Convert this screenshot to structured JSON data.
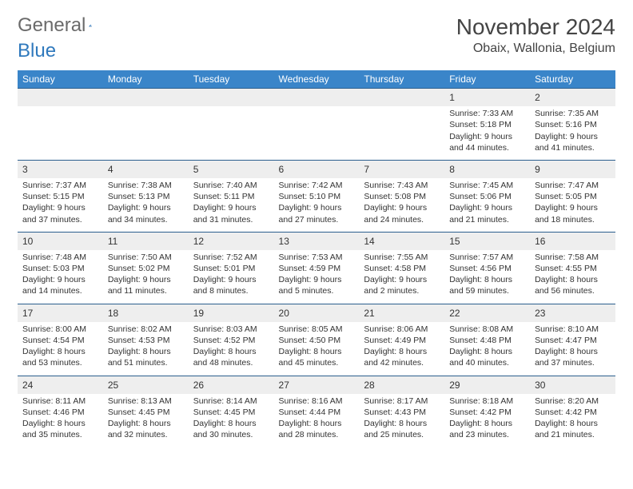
{
  "logo": {
    "text1": "General",
    "text2": "Blue"
  },
  "header": {
    "month_title": "November 2024",
    "location": "Obaix, Wallonia, Belgium"
  },
  "colors": {
    "header_bg": "#3a85c9",
    "header_text": "#ffffff",
    "daynum_bg": "#eeeeee",
    "row_border": "#2b5f8e",
    "logo_gray": "#6a6a6a",
    "logo_blue": "#2f79bd"
  },
  "weekdays": [
    "Sunday",
    "Monday",
    "Tuesday",
    "Wednesday",
    "Thursday",
    "Friday",
    "Saturday"
  ],
  "weeks": [
    [
      null,
      null,
      null,
      null,
      null,
      {
        "n": "1",
        "sr": "7:33 AM",
        "ss": "5:18 PM",
        "dl": "9 hours and 44 minutes."
      },
      {
        "n": "2",
        "sr": "7:35 AM",
        "ss": "5:16 PM",
        "dl": "9 hours and 41 minutes."
      }
    ],
    [
      {
        "n": "3",
        "sr": "7:37 AM",
        "ss": "5:15 PM",
        "dl": "9 hours and 37 minutes."
      },
      {
        "n": "4",
        "sr": "7:38 AM",
        "ss": "5:13 PM",
        "dl": "9 hours and 34 minutes."
      },
      {
        "n": "5",
        "sr": "7:40 AM",
        "ss": "5:11 PM",
        "dl": "9 hours and 31 minutes."
      },
      {
        "n": "6",
        "sr": "7:42 AM",
        "ss": "5:10 PM",
        "dl": "9 hours and 27 minutes."
      },
      {
        "n": "7",
        "sr": "7:43 AM",
        "ss": "5:08 PM",
        "dl": "9 hours and 24 minutes."
      },
      {
        "n": "8",
        "sr": "7:45 AM",
        "ss": "5:06 PM",
        "dl": "9 hours and 21 minutes."
      },
      {
        "n": "9",
        "sr": "7:47 AM",
        "ss": "5:05 PM",
        "dl": "9 hours and 18 minutes."
      }
    ],
    [
      {
        "n": "10",
        "sr": "7:48 AM",
        "ss": "5:03 PM",
        "dl": "9 hours and 14 minutes."
      },
      {
        "n": "11",
        "sr": "7:50 AM",
        "ss": "5:02 PM",
        "dl": "9 hours and 11 minutes."
      },
      {
        "n": "12",
        "sr": "7:52 AM",
        "ss": "5:01 PM",
        "dl": "9 hours and 8 minutes."
      },
      {
        "n": "13",
        "sr": "7:53 AM",
        "ss": "4:59 PM",
        "dl": "9 hours and 5 minutes."
      },
      {
        "n": "14",
        "sr": "7:55 AM",
        "ss": "4:58 PM",
        "dl": "9 hours and 2 minutes."
      },
      {
        "n": "15",
        "sr": "7:57 AM",
        "ss": "4:56 PM",
        "dl": "8 hours and 59 minutes."
      },
      {
        "n": "16",
        "sr": "7:58 AM",
        "ss": "4:55 PM",
        "dl": "8 hours and 56 minutes."
      }
    ],
    [
      {
        "n": "17",
        "sr": "8:00 AM",
        "ss": "4:54 PM",
        "dl": "8 hours and 53 minutes."
      },
      {
        "n": "18",
        "sr": "8:02 AM",
        "ss": "4:53 PM",
        "dl": "8 hours and 51 minutes."
      },
      {
        "n": "19",
        "sr": "8:03 AM",
        "ss": "4:52 PM",
        "dl": "8 hours and 48 minutes."
      },
      {
        "n": "20",
        "sr": "8:05 AM",
        "ss": "4:50 PM",
        "dl": "8 hours and 45 minutes."
      },
      {
        "n": "21",
        "sr": "8:06 AM",
        "ss": "4:49 PM",
        "dl": "8 hours and 42 minutes."
      },
      {
        "n": "22",
        "sr": "8:08 AM",
        "ss": "4:48 PM",
        "dl": "8 hours and 40 minutes."
      },
      {
        "n": "23",
        "sr": "8:10 AM",
        "ss": "4:47 PM",
        "dl": "8 hours and 37 minutes."
      }
    ],
    [
      {
        "n": "24",
        "sr": "8:11 AM",
        "ss": "4:46 PM",
        "dl": "8 hours and 35 minutes."
      },
      {
        "n": "25",
        "sr": "8:13 AM",
        "ss": "4:45 PM",
        "dl": "8 hours and 32 minutes."
      },
      {
        "n": "26",
        "sr": "8:14 AM",
        "ss": "4:45 PM",
        "dl": "8 hours and 30 minutes."
      },
      {
        "n": "27",
        "sr": "8:16 AM",
        "ss": "4:44 PM",
        "dl": "8 hours and 28 minutes."
      },
      {
        "n": "28",
        "sr": "8:17 AM",
        "ss": "4:43 PM",
        "dl": "8 hours and 25 minutes."
      },
      {
        "n": "29",
        "sr": "8:18 AM",
        "ss": "4:42 PM",
        "dl": "8 hours and 23 minutes."
      },
      {
        "n": "30",
        "sr": "8:20 AM",
        "ss": "4:42 PM",
        "dl": "8 hours and 21 minutes."
      }
    ]
  ],
  "labels": {
    "sunrise": "Sunrise: ",
    "sunset": "Sunset: ",
    "daylight": "Daylight: "
  }
}
